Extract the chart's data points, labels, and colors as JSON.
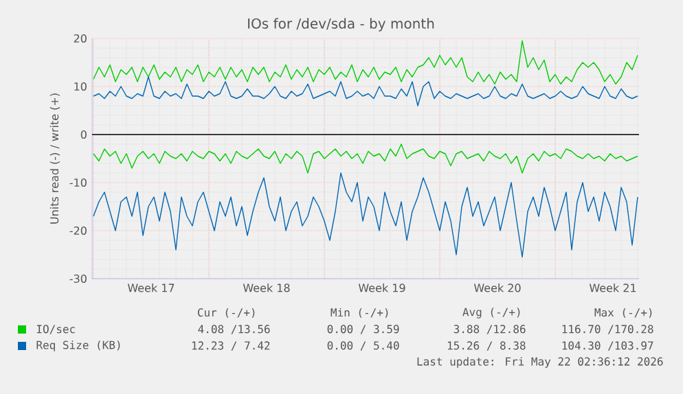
{
  "chart_data": {
    "type": "line",
    "title": "IOs for /dev/sda - by month",
    "ylabel": "Units read (-) / write (+)",
    "x": [
      "2026-04-19T00:00",
      "2026-04-19T08:00",
      "2026-04-19T16:00",
      "2026-04-20T00:00",
      "2026-04-20T08:00",
      "2026-04-20T16:00",
      "2026-04-21T00:00",
      "2026-04-21T08:00",
      "2026-04-21T16:00",
      "2026-04-22T00:00",
      "2026-04-22T08:00",
      "2026-04-22T16:00",
      "2026-04-23T00:00",
      "2026-04-23T08:00",
      "2026-04-23T16:00",
      "2026-04-24T00:00",
      "2026-04-24T08:00",
      "2026-04-24T16:00",
      "2026-04-25T00:00",
      "2026-04-25T08:00",
      "2026-04-25T16:00",
      "2026-04-26T00:00",
      "2026-04-26T08:00",
      "2026-04-26T16:00",
      "2026-04-27T00:00",
      "2026-04-27T08:00",
      "2026-04-27T16:00",
      "2026-04-28T00:00",
      "2026-04-28T08:00",
      "2026-04-28T16:00",
      "2026-04-29T00:00",
      "2026-04-29T08:00",
      "2026-04-29T16:00",
      "2026-04-30T00:00",
      "2026-04-30T08:00",
      "2026-04-30T16:00",
      "2026-05-01T00:00",
      "2026-05-01T08:00",
      "2026-05-01T16:00",
      "2026-05-02T00:00",
      "2026-05-02T08:00",
      "2026-05-02T16:00",
      "2026-05-03T00:00",
      "2026-05-03T08:00",
      "2026-05-03T16:00",
      "2026-05-04T00:00",
      "2026-05-04T08:00",
      "2026-05-04T16:00",
      "2026-05-05T00:00",
      "2026-05-05T08:00",
      "2026-05-05T16:00",
      "2026-05-06T00:00",
      "2026-05-06T08:00",
      "2026-05-06T16:00",
      "2026-05-07T00:00",
      "2026-05-07T08:00",
      "2026-05-07T16:00",
      "2026-05-08T00:00",
      "2026-05-08T08:00",
      "2026-05-08T16:00",
      "2026-05-09T00:00",
      "2026-05-09T08:00",
      "2026-05-09T16:00",
      "2026-05-10T00:00",
      "2026-05-10T08:00",
      "2026-05-10T16:00",
      "2026-05-11T00:00",
      "2026-05-11T08:00",
      "2026-05-11T16:00",
      "2026-05-12T00:00",
      "2026-05-12T08:00",
      "2026-05-12T16:00",
      "2026-05-13T00:00",
      "2026-05-13T08:00",
      "2026-05-13T16:00",
      "2026-05-14T00:00",
      "2026-05-14T08:00",
      "2026-05-14T16:00",
      "2026-05-15T00:00",
      "2026-05-15T08:00",
      "2026-05-15T16:00",
      "2026-05-16T00:00",
      "2026-05-16T08:00",
      "2026-05-16T16:00",
      "2026-05-17T00:00",
      "2026-05-17T08:00",
      "2026-05-17T16:00",
      "2026-05-18T00:00",
      "2026-05-18T08:00",
      "2026-05-18T16:00",
      "2026-05-19T00:00",
      "2026-05-19T08:00",
      "2026-05-19T16:00",
      "2026-05-20T00:00",
      "2026-05-20T08:00",
      "2026-05-20T16:00",
      "2026-05-21T00:00",
      "2026-05-21T08:00",
      "2026-05-21T16:00",
      "2026-05-22T00:00"
    ],
    "series": [
      {
        "name": "IO/sec",
        "color": "#00cc00",
        "values": [
          11.5,
          14,
          12,
          14.5,
          11,
          13.5,
          12.5,
          14,
          11,
          14,
          12,
          14.5,
          11.5,
          13,
          12,
          14,
          11,
          13.5,
          12.5,
          14.5,
          11,
          13,
          12,
          14,
          11.5,
          14,
          12,
          13.5,
          11,
          14,
          12.5,
          14,
          11,
          13,
          12,
          14.5,
          11.5,
          13.5,
          12,
          14,
          11,
          13.5,
          12.5,
          14,
          11.5,
          13,
          12,
          14.5,
          11,
          13.5,
          12,
          14,
          11.5,
          13,
          12.5,
          14,
          11,
          13.5,
          12,
          14,
          14.5,
          16,
          14,
          16.5,
          14.5,
          16,
          14,
          16,
          12,
          11,
          13,
          11,
          12.5,
          10.5,
          13,
          11.5,
          12.5,
          11,
          19.5,
          14,
          16,
          13.5,
          15.5,
          11,
          12.5,
          10.5,
          12,
          11,
          13.5,
          15,
          14,
          15,
          13.5,
          11,
          12.5,
          10.5,
          12,
          15,
          13.5,
          16.5
        ]
      },
      {
        "color": "#00cc00",
        "values": [
          -4,
          -5.5,
          -3,
          -4.5,
          -3.5,
          -6,
          -4,
          -7,
          -4.5,
          -3.5,
          -5,
          -4,
          -6,
          -3.5,
          -4.5,
          -5,
          -4,
          -5.5,
          -3.5,
          -4.5,
          -5,
          -3.5,
          -4,
          -5.5,
          -4,
          -6,
          -3.5,
          -4.5,
          -5,
          -4,
          -3,
          -4.5,
          -5,
          -3.5,
          -6,
          -4,
          -5,
          -3.5,
          -4.5,
          -8,
          -4,
          -3.5,
          -5,
          -4,
          -3,
          -4.5,
          -3.5,
          -5,
          -4,
          -6,
          -3.5,
          -4.5,
          -4,
          -5.5,
          -3,
          -4.5,
          -2,
          -5,
          -4,
          -3.5,
          -3,
          -4.5,
          -5,
          -3.5,
          -4,
          -6.5,
          -4,
          -3.5,
          -5,
          -4.5,
          -4,
          -5.5,
          -3.5,
          -4.5,
          -5,
          -4,
          -6,
          -4.5,
          -8,
          -5,
          -4,
          -5.5,
          -3.5,
          -4.5,
          -4,
          -5,
          -3,
          -3.5,
          -4.5,
          -5,
          -4,
          -5,
          -4.5,
          -5.5,
          -4,
          -5,
          -4.5,
          -5.5,
          -5,
          -4.5
        ]
      },
      {
        "name": "Req Size (KB)",
        "color": "#0066b3",
        "values": [
          8,
          8.5,
          7.5,
          9,
          8,
          10,
          8,
          7.5,
          8.5,
          8,
          12,
          8,
          7.5,
          9,
          8,
          8.5,
          7.5,
          10.5,
          8,
          8,
          7.5,
          9,
          8,
          8.5,
          11,
          8,
          7.5,
          8,
          9.5,
          8,
          8,
          7.5,
          8.5,
          10,
          8,
          7.5,
          9,
          8,
          8.5,
          10.5,
          7.5,
          8,
          8.5,
          9,
          8,
          11,
          7.5,
          8,
          9,
          8,
          8.5,
          7.5,
          10,
          8,
          8,
          7.5,
          9.5,
          8,
          11,
          6,
          10,
          11,
          7.5,
          9,
          8,
          7.5,
          8.5,
          8,
          7.5,
          8,
          8.5,
          7.5,
          8,
          10,
          8,
          7.5,
          8.5,
          8,
          10.5,
          8,
          7.5,
          8,
          8.5,
          7.5,
          8,
          9,
          8,
          7.5,
          8,
          10,
          8.5,
          8,
          7.5,
          10,
          8,
          7.5,
          9.5,
          8,
          7.5,
          8
        ]
      },
      {
        "color": "#0066b3",
        "values": [
          -17,
          -14,
          -12,
          -16,
          -20,
          -14,
          -13,
          -17,
          -12,
          -21,
          -15,
          -13,
          -18,
          -12,
          -16,
          -24,
          -13,
          -17,
          -19,
          -14,
          -12,
          -16,
          -20,
          -14,
          -17,
          -13,
          -19,
          -15,
          -21,
          -16,
          -12,
          -9,
          -15,
          -18,
          -13,
          -20,
          -16,
          -14,
          -19,
          -17,
          -13,
          -15,
          -18,
          -22,
          -16,
          -8,
          -12,
          -14,
          -10,
          -18,
          -13,
          -15,
          -20,
          -12,
          -16,
          -19,
          -14,
          -22,
          -16,
          -13,
          -9,
          -12,
          -16,
          -20,
          -14,
          -18,
          -25,
          -15,
          -11,
          -17,
          -14,
          -19,
          -16,
          -13,
          -20,
          -15,
          -10,
          -18,
          -25.5,
          -16,
          -13,
          -17,
          -11,
          -15,
          -20,
          -16,
          -12,
          -24,
          -14,
          -10,
          -16,
          -13,
          -18,
          -12,
          -15,
          -20,
          -11,
          -14,
          -23,
          -13
        ]
      }
    ],
    "xlim": [
      "2026-04-18T22:00",
      "2026-05-22T02:00"
    ],
    "xticks": [
      {
        "value": "2026-04-19T00:00",
        "label": null
      },
      {
        "value": "2026-04-22T12:00",
        "label": "Week 17"
      },
      {
        "value": "2026-04-26T00:00",
        "label": null
      },
      {
        "value": "2026-04-29T12:00",
        "label": "Week 18"
      },
      {
        "value": "2026-05-03T00:00",
        "label": null
      },
      {
        "value": "2026-05-06T12:00",
        "label": "Week 19"
      },
      {
        "value": "2026-05-10T00:00",
        "label": null
      },
      {
        "value": "2026-05-13T12:00",
        "label": "Week 20"
      },
      {
        "value": "2026-05-17T00:00",
        "label": null
      },
      {
        "value": "2026-05-20T12:00",
        "label": "Week 21"
      }
    ],
    "ylim": [
      -30,
      20
    ],
    "yticks": [
      -30,
      -20,
      -10,
      0,
      10,
      20
    ],
    "grid": true,
    "legend": "bottom",
    "ref_lines": [
      {
        "axis": "y",
        "value": 0,
        "color": "#000000"
      }
    ],
    "annotations": [
      "Cur (-/+)",
      "Min (-/+)",
      "Avg (-/+)",
      "Max (-/+)",
      "4.08 /13.56",
      "0.00 / 3.59",
      "3.88 /12.86",
      "116.70 /170.28",
      "12.23 / 7.42",
      "0.00 / 5.40",
      "15.26 / 8.38",
      "104.30 /103.97",
      "Last update: Fri May 22 02:36:12 2026"
    ]
  }
}
